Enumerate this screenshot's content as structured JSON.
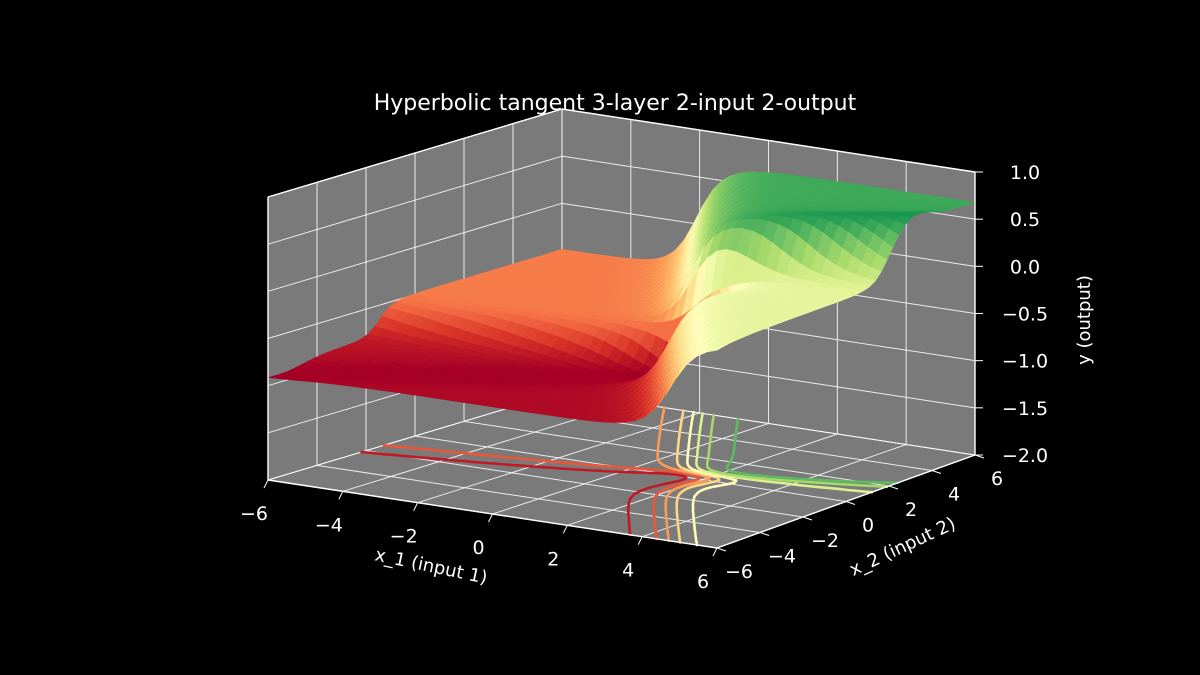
{
  "chart_data": {
    "type": "surface",
    "title": "Hyperbolic tangent 3-layer 2-input 2-output",
    "xlabel": "x_1 (input 1)",
    "ylabel": "x_2 (input 2)",
    "zlabel": "y (output)",
    "xlim": [
      -6,
      6
    ],
    "ylim": [
      -6,
      6
    ],
    "zlim": [
      -2.0,
      1.0
    ],
    "x_ticks": [
      "−6",
      "−4",
      "−2",
      "0",
      "2",
      "4",
      "6"
    ],
    "y_ticks": [
      "−6",
      "−4",
      "−2",
      "0",
      "2",
      "4",
      "6"
    ],
    "z_ticks": [
      "1.0",
      "0.5",
      "0.0",
      "−0.5",
      "−1.0",
      "−1.5",
      "−2.0"
    ],
    "colormap": "RdYlGn",
    "contours_projected_on_floor": true,
    "grid": true,
    "pane_color": "#7a7a7a",
    "background": "#000000",
    "surface_z_range": [
      -0.9,
      0.95
    ]
  }
}
